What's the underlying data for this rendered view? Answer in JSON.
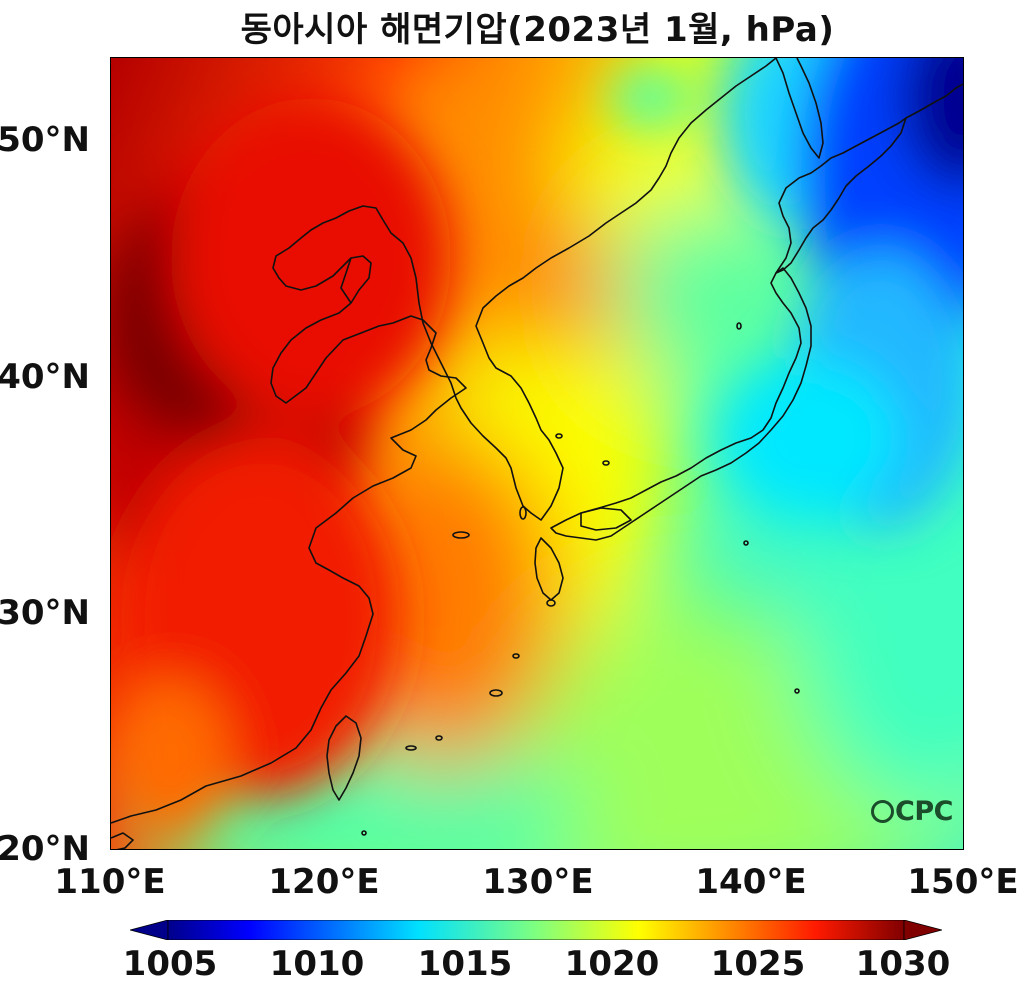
{
  "title": "동아시아 해면기압(2023년 1월, hPa)",
  "map": {
    "lat_ticks": [
      "50°N",
      "40°N",
      "30°N",
      "20°N"
    ],
    "lon_ticks": [
      "110°E",
      "120°E",
      "130°E",
      "140°E",
      "150°E"
    ],
    "extent": {
      "lon": [
        110,
        150
      ],
      "lat": [
        20,
        53.5
      ]
    },
    "colormap": "jet"
  },
  "colorbar": {
    "ticks": [
      "1005",
      "1010",
      "1015",
      "1020",
      "1025",
      "1030"
    ],
    "range": [
      1005,
      1030
    ],
    "extend": "both"
  },
  "logo": {
    "text": "CPC",
    "icon": "globe-icon"
  },
  "colors": {
    "low": "#00008b",
    "mid": "#7fff7f",
    "high": "#800000"
  }
}
